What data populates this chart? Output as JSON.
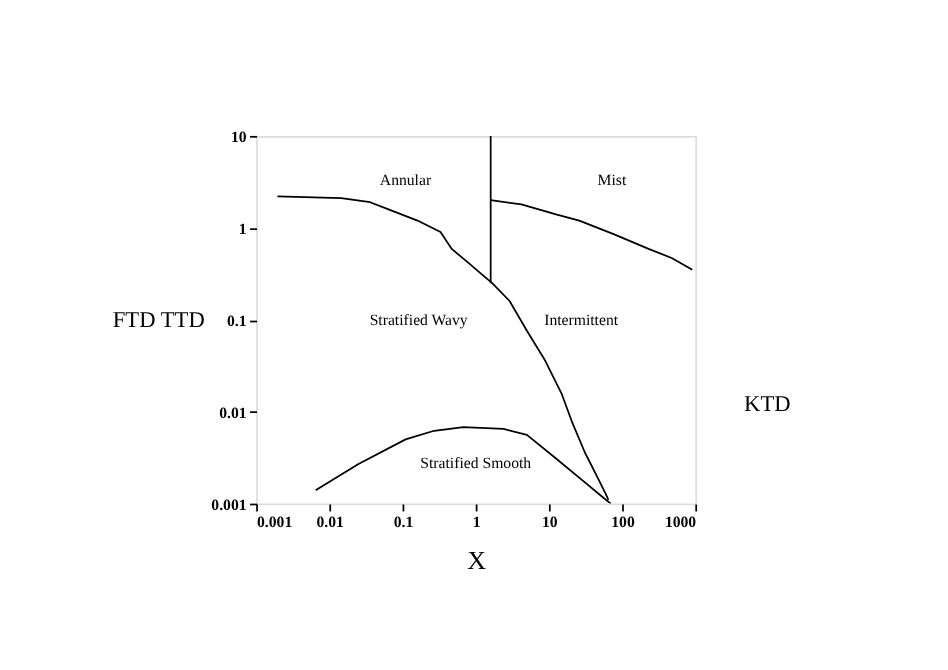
{
  "chart_data": {
    "type": "line",
    "xlabel": "X",
    "ylabel": "FTD  TTD",
    "y2label": "KTD",
    "log": "xy",
    "grid": false,
    "line_style": "solid",
    "marker": "none",
    "xlim": [
      0.001,
      1000
    ],
    "xticks": [
      0.001,
      0.01,
      0.1,
      1,
      10,
      100,
      1000
    ],
    "ylim": [
      0.001,
      10
    ],
    "yticks": [
      0.001,
      0.01,
      0.1,
      1,
      10
    ],
    "series": [
      {
        "color": "#000000",
        "x": [
          0.00195,
          0.0145,
          0.036,
          0.063,
          0.16,
          0.33,
          0.47,
          0.81,
          1.28,
          1.68,
          2.9,
          5.0,
          8.7,
          15,
          21,
          31,
          45,
          59,
          65
        ],
        "values": [
          2.2,
          2.1,
          1.9,
          1.6,
          1.2,
          0.9,
          0.59,
          0.41,
          0.3,
          0.25,
          0.16,
          0.076,
          0.037,
          0.0155,
          0.0075,
          0.0036,
          0.002,
          0.0013,
          0.0011
        ]
      },
      {
        "color": "#000000",
        "x": [
          1.6,
          1.6
        ],
        "values": [
          0.25,
          10
        ]
      },
      {
        "color": "#000000",
        "x": [
          1.6,
          4.2,
          12.5,
          26,
          78,
          230,
          475,
          910
        ],
        "values": [
          2.0,
          1.8,
          1.4,
          1.2,
          0.85,
          0.59,
          0.47,
          0.35
        ]
      },
      {
        "color": "#000000",
        "x": [
          0.0065,
          0.025,
          0.11,
          0.27,
          0.68,
          2.4,
          5.0,
          12.5,
          31,
          56,
          70
        ],
        "values": [
          0.0014,
          0.0027,
          0.005,
          0.0062,
          0.0068,
          0.0065,
          0.0056,
          0.0031,
          0.0017,
          0.00115,
          0.001
        ]
      }
    ],
    "annotations": [
      "Annular",
      "Mist",
      "Stratified Wavy",
      "Intermittent",
      "Stratified Smooth"
    ]
  }
}
